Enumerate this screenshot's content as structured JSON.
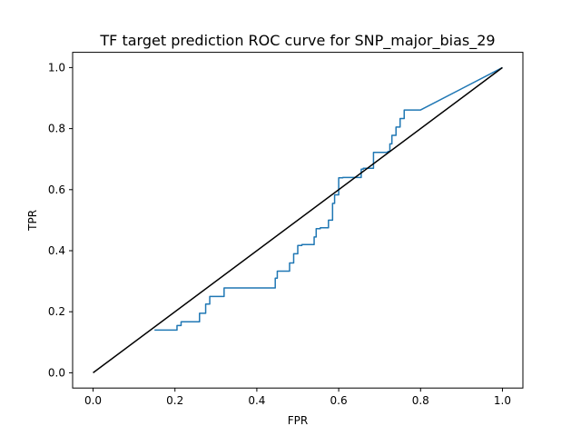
{
  "chart_data": {
    "type": "line",
    "title": "TF target prediction ROC curve for SNP_major_bias_29",
    "xlabel": "FPR",
    "ylabel": "TPR",
    "xlim": [
      -0.05,
      1.05
    ],
    "ylim": [
      -0.05,
      1.05
    ],
    "xticks": [
      0.0,
      0.2,
      0.4,
      0.6,
      0.8,
      1.0
    ],
    "yticks": [
      0.0,
      0.2,
      0.4,
      0.6,
      0.8,
      1.0
    ],
    "xtick_labels": [
      "0.0",
      "0.2",
      "0.4",
      "0.6",
      "0.8",
      "1.0"
    ],
    "ytick_labels": [
      "0.0",
      "0.2",
      "0.4",
      "0.6",
      "0.8",
      "1.0"
    ],
    "grid": false,
    "series": [
      {
        "name": "ROC",
        "color": "#1f77b4",
        "x": [
          0.15,
          0.205,
          0.205,
          0.215,
          0.215,
          0.26,
          0.26,
          0.275,
          0.275,
          0.285,
          0.285,
          0.32,
          0.32,
          0.445,
          0.445,
          0.45,
          0.45,
          0.48,
          0.48,
          0.49,
          0.49,
          0.5,
          0.5,
          0.51,
          0.51,
          0.54,
          0.54,
          0.545,
          0.545,
          0.555,
          0.555,
          0.575,
          0.575,
          0.585,
          0.585,
          0.59,
          0.59,
          0.6,
          0.6,
          0.61,
          0.61,
          0.655,
          0.655,
          0.66,
          0.66,
          0.685,
          0.685,
          0.72,
          0.72,
          0.725,
          0.725,
          0.73,
          0.73,
          0.74,
          0.74,
          0.75,
          0.75,
          0.76,
          0.76,
          0.8,
          1.0
        ],
        "y": [
          0.14,
          0.14,
          0.155,
          0.155,
          0.167,
          0.167,
          0.195,
          0.195,
          0.225,
          0.225,
          0.25,
          0.25,
          0.278,
          0.278,
          0.31,
          0.31,
          0.333,
          0.333,
          0.36,
          0.36,
          0.39,
          0.39,
          0.417,
          0.417,
          0.42,
          0.42,
          0.445,
          0.445,
          0.472,
          0.472,
          0.475,
          0.475,
          0.5,
          0.5,
          0.555,
          0.555,
          0.583,
          0.583,
          0.639,
          0.639,
          0.64,
          0.64,
          0.667,
          0.667,
          0.67,
          0.67,
          0.722,
          0.722,
          0.725,
          0.725,
          0.75,
          0.75,
          0.778,
          0.778,
          0.805,
          0.805,
          0.833,
          0.833,
          0.861,
          0.861,
          1.0
        ]
      },
      {
        "name": "Diagonal",
        "color": "#000000",
        "x": [
          0.0,
          1.0
        ],
        "y": [
          0.0,
          1.0
        ]
      }
    ]
  }
}
